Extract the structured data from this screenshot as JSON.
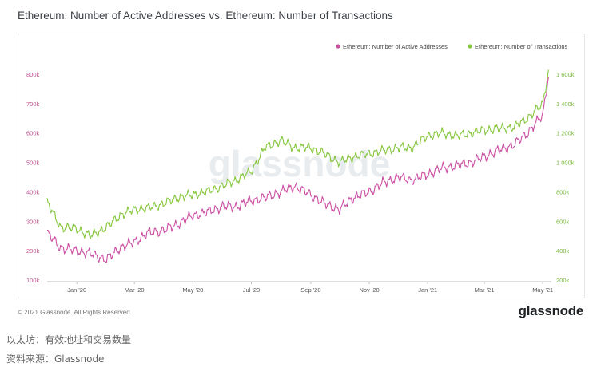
{
  "title": "Ethereum: Number of Active Addresses vs. Ethereum: Number of Transactions",
  "footer": {
    "copyright": "© 2021 Glassnode. All Rights Reserved.",
    "brand": "glassnode"
  },
  "watermark": "glassnode",
  "captions": {
    "line1": "以太坊：有效地址和交易数量",
    "line2": "资料来源：Glassnode"
  },
  "colors": {
    "active": "#cc4fa3",
    "tx": "#86c73f"
  },
  "chart_data": {
    "type": "line",
    "title": "Ethereum: Number of Active Addresses vs. Ethereum: Number of Transactions",
    "legend_position": "top-right",
    "grid": false,
    "x_ticks": [
      "Jan '20",
      "Mar '20",
      "May '20",
      "Jul '20",
      "Sep '20",
      "Nov '20",
      "Jan '21",
      "Mar '21",
      "May '21"
    ],
    "y_left": {
      "label": "",
      "ticks": [
        "100k",
        "200k",
        "300k",
        "400k",
        "500k",
        "600k",
        "700k",
        "800k"
      ],
      "lim": [
        100,
        800
      ],
      "unit": "k"
    },
    "y_right": {
      "label": "",
      "ticks": [
        "200k",
        "400k",
        "600k",
        "800k",
        "1 000k",
        "1 200k",
        "1 400k",
        "1 600k"
      ],
      "lim": [
        200,
        1600
      ],
      "unit": "k"
    },
    "series": [
      {
        "name": "Ethereum: Number of Active Addresses",
        "axis": "left",
        "x": [
          "2019-12-01",
          "2019-12-15",
          "2020-01-01",
          "2020-01-15",
          "2020-02-01",
          "2020-02-15",
          "2020-03-01",
          "2020-03-15",
          "2020-04-01",
          "2020-04-15",
          "2020-05-01",
          "2020-05-15",
          "2020-06-01",
          "2020-06-15",
          "2020-07-01",
          "2020-07-15",
          "2020-08-01",
          "2020-08-15",
          "2020-09-01",
          "2020-09-15",
          "2020-10-01",
          "2020-10-15",
          "2020-11-01",
          "2020-11-15",
          "2020-12-01",
          "2020-12-15",
          "2021-01-01",
          "2021-01-15",
          "2021-02-01",
          "2021-02-15",
          "2021-03-01",
          "2021-03-15",
          "2021-04-01",
          "2021-04-15",
          "2021-05-01",
          "2021-05-07"
        ],
        "values": [
          260,
          210,
          200,
          190,
          170,
          210,
          230,
          260,
          270,
          290,
          320,
          330,
          350,
          350,
          370,
          380,
          400,
          420,
          390,
          360,
          340,
          380,
          400,
          430,
          450,
          440,
          460,
          480,
          490,
          500,
          520,
          540,
          560,
          600,
          660,
          800
        ]
      },
      {
        "name": "Ethereum: Number of Transactions",
        "axis": "right",
        "x": [
          "2019-12-01",
          "2019-12-15",
          "2020-01-01",
          "2020-01-15",
          "2020-02-01",
          "2020-02-15",
          "2020-03-01",
          "2020-03-15",
          "2020-04-01",
          "2020-04-15",
          "2020-05-01",
          "2020-05-15",
          "2020-06-01",
          "2020-06-15",
          "2020-07-01",
          "2020-07-15",
          "2020-08-01",
          "2020-08-15",
          "2020-09-01",
          "2020-09-15",
          "2020-10-01",
          "2020-10-15",
          "2020-11-01",
          "2020-11-15",
          "2020-12-01",
          "2020-12-15",
          "2021-01-01",
          "2021-01-15",
          "2021-02-01",
          "2021-02-15",
          "2021-03-01",
          "2021-03-15",
          "2021-04-01",
          "2021-04-15",
          "2021-05-01",
          "2021-05-07"
        ],
        "values": [
          730,
          560,
          550,
          500,
          560,
          640,
          680,
          690,
          720,
          760,
          780,
          800,
          840,
          880,
          940,
          1100,
          1150,
          1100,
          1100,
          1060,
          1000,
          1040,
          1060,
          1080,
          1100,
          1100,
          1180,
          1200,
          1180,
          1200,
          1220,
          1230,
          1240,
          1300,
          1400,
          1630
        ]
      }
    ]
  }
}
